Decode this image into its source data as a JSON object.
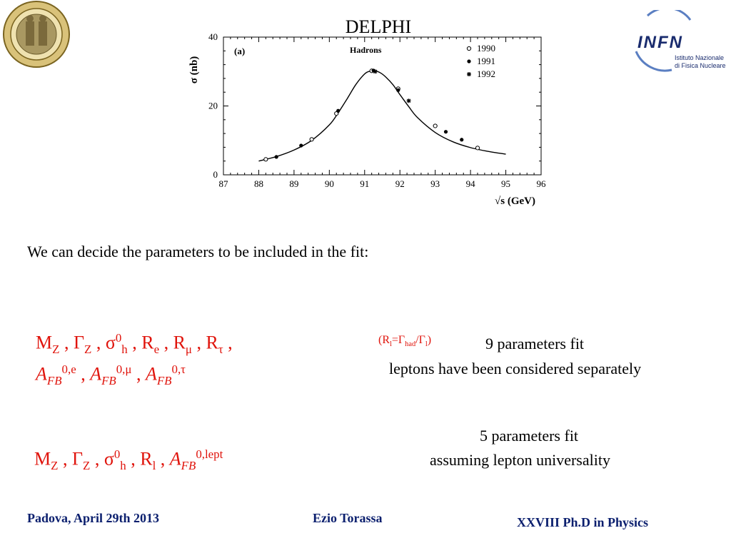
{
  "logos": {
    "padova_colors": {
      "ring": "#c8a83a",
      "inner": "#8a7a4a"
    },
    "infn": {
      "name": "INFN",
      "line1": "Istituto Nazionale",
      "line2": "di Fisica Nucleare",
      "colors": {
        "text": "#1a2c6e",
        "arc": "#5b7fc2"
      }
    }
  },
  "chart_data": {
    "type": "scatter",
    "title": "DELPHI",
    "panel_label": "(a)",
    "subtitle": "Hadrons",
    "xlabel": "√s (GeV)",
    "ylabel": "σ (nb)",
    "xlim": [
      87,
      96
    ],
    "ylim": [
      0,
      40
    ],
    "xticks": [
      "87",
      "88",
      "89",
      "90",
      "91",
      "92",
      "93",
      "94",
      "95",
      "96"
    ],
    "yticks": [
      "0",
      "20",
      "40"
    ],
    "legend": [
      "1990",
      "1991",
      "1992"
    ],
    "legend_position": "top-right",
    "fit_curve": {
      "x": [
        88.0,
        88.5,
        89.0,
        89.5,
        90.0,
        90.25,
        90.5,
        90.75,
        91.0,
        91.15,
        91.3,
        91.45,
        91.6,
        91.8,
        92.0,
        92.25,
        92.5,
        93.0,
        93.5,
        94.0,
        94.5,
        95.0
      ],
      "y": [
        4.0,
        5.3,
        7.2,
        10.0,
        14.5,
        18.0,
        22.0,
        26.2,
        29.3,
        30.1,
        30.2,
        29.6,
        28.4,
        26.2,
        23.3,
        19.8,
        16.6,
        12.3,
        9.6,
        7.9,
        6.8,
        6.0
      ]
    },
    "series": [
      {
        "name": "1990",
        "marker": "open-circle",
        "x": [
          88.2,
          89.5,
          90.2,
          91.2,
          91.95,
          93.0,
          94.2
        ],
        "y": [
          4.5,
          10.3,
          17.8,
          30.2,
          25.0,
          14.2,
          7.8
        ]
      },
      {
        "name": "1991",
        "marker": "filled-circle",
        "x": [
          88.5,
          89.2,
          90.25,
          91.25,
          91.95,
          93.3,
          93.75
        ],
        "y": [
          5.2,
          8.5,
          18.6,
          30.3,
          24.6,
          12.5,
          10.2
        ]
      },
      {
        "name": "1992",
        "marker": "asterisk",
        "x": [
          91.3,
          92.25
        ],
        "y": [
          30.0,
          21.5
        ]
      }
    ]
  },
  "body": {
    "intro": "We can decide the parameters to be included in the fit:",
    "fit9": {
      "M": "M",
      "Z1": "Z",
      "sep1": " ,  ",
      "Gamma": "Γ",
      "Z2": "Z",
      "sep2": " , ",
      "sigma": "σ",
      "zero": "0",
      "h": "h",
      "sep3": " , ",
      "Re_R": "R",
      "Re_sub": "e",
      "sep4": " , ",
      "Rmu_R": "R",
      "Rmu_sub": "μ",
      "sep5": "  , ",
      "Rtau_R": "R",
      "Rtau_sub": "τ",
      "sep6": " ,",
      "afb_A": "A",
      "afb_FB": "FB",
      "afb_e_sup": "0,e",
      "afb_mu_sup": "0,μ",
      "afb_tau_sup": "0,τ",
      "comma1": " , ",
      "comma2": "  , ",
      "ratio_open": "(R",
      "ratio_l": "l",
      "ratio_eq": "=Γ",
      "ratio_had": "had",
      "ratio_slash": "/Γ",
      "ratio_l2": "l",
      "ratio_close": ")",
      "label": "9 parameters fit",
      "note": "leptons have been considered separately"
    },
    "fit5": {
      "M": "M",
      "Z1": "Z",
      "sep1": " ,  ",
      "Gamma": "Γ",
      "Z2": "Z",
      "sep2": " , ",
      "sigma": "σ",
      "zero": "0",
      "h": "h",
      "sep3": " , ",
      "Rl_R": "R",
      "Rl_sub": "l",
      "sep4": " ,  ",
      "afb_A": "A",
      "afb_FB": "FB",
      "afb_sup": "0,lept",
      "label": "5 parameters fit",
      "note": "assuming lepton universality"
    }
  },
  "footer": {
    "left": "Padova, April 29th 2013",
    "center": "Ezio Torassa",
    "right": "XXVIII  Ph.D in Physics",
    "color": "#0b1f6e"
  }
}
